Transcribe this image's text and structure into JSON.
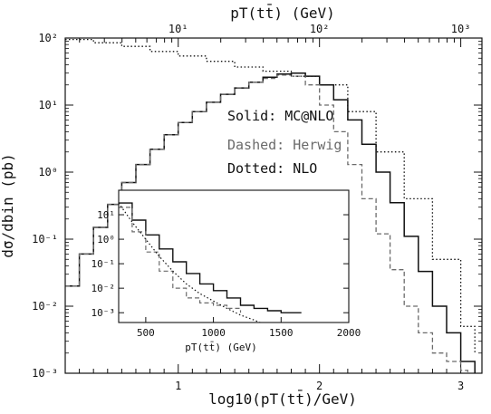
{
  "chart_data": {
    "type": "line",
    "main": {
      "xlabel": "log10(pT(tt̄)/GeV)",
      "top_xlabel": "pT(tt̄) (GeV)",
      "ylabel": "dσ/dbin (pb)",
      "xlim": [
        0.2,
        3.15
      ],
      "ylim_log10": [
        -3,
        2
      ],
      "log_y": true,
      "x_ticks": [
        "1",
        "2",
        "3"
      ],
      "x_tick_values": [
        1,
        2,
        3
      ],
      "top_ticks": [
        "10¹",
        "10²",
        "10³"
      ],
      "top_tick_values": [
        1,
        2,
        3
      ],
      "y_ticks": [
        "10⁻³",
        "10⁻²",
        "10⁻¹",
        "10⁰",
        "10¹",
        "10²"
      ],
      "y_tick_values": [
        -3,
        -2,
        -1,
        0,
        1,
        2
      ],
      "legend": [
        {
          "label": "Solid: MC@NLO",
          "color": "#111111"
        },
        {
          "label": "Dashed: Herwig",
          "color": "#6b6b6b"
        },
        {
          "label": "Dotted: NLO",
          "color": "#111111"
        }
      ],
      "series": [
        {
          "name": "MC@NLO",
          "style": "solid",
          "color": "#111111",
          "x": [
            0.2,
            0.3,
            0.4,
            0.5,
            0.6,
            0.7,
            0.8,
            0.9,
            1.0,
            1.1,
            1.2,
            1.3,
            1.4,
            1.5,
            1.6,
            1.7,
            1.8,
            1.9,
            2.0,
            2.1,
            2.2,
            2.3,
            2.4,
            2.5,
            2.6,
            2.7,
            2.8,
            2.9,
            3.0,
            3.1
          ],
          "y": [
            0.02,
            0.06,
            0.15,
            0.33,
            0.7,
            1.3,
            2.2,
            3.6,
            5.5,
            8.0,
            11.0,
            14.5,
            18.0,
            22.0,
            26.0,
            29.0,
            30.0,
            27.0,
            20.0,
            12.0,
            6.0,
            2.6,
            1.0,
            0.35,
            0.11,
            0.033,
            0.01,
            0.004,
            0.0015,
            0.001
          ]
        },
        {
          "name": "Herwig",
          "style": "dashed",
          "color": "#6b6b6b",
          "x": [
            0.2,
            0.3,
            0.4,
            0.5,
            0.6,
            0.7,
            0.8,
            0.9,
            1.0,
            1.1,
            1.2,
            1.3,
            1.4,
            1.5,
            1.6,
            1.7,
            1.8,
            1.9,
            2.0,
            2.1,
            2.2,
            2.3,
            2.4,
            2.5,
            2.6,
            2.7,
            2.8,
            2.9,
            3.0,
            3.05
          ],
          "y": [
            0.02,
            0.06,
            0.15,
            0.33,
            0.7,
            1.3,
            2.2,
            3.6,
            5.5,
            8.0,
            11.0,
            14.5,
            18.0,
            22.0,
            25.0,
            28.0,
            27.0,
            20.0,
            10.0,
            4.0,
            1.3,
            0.4,
            0.12,
            0.035,
            0.01,
            0.004,
            0.002,
            0.0015,
            0.0011,
            0.001
          ]
        },
        {
          "name": "NLO",
          "style": "dotted",
          "color": "#111111",
          "x": [
            0.2,
            0.4,
            0.6,
            0.8,
            1.0,
            1.2,
            1.4,
            1.6,
            1.8,
            2.0,
            2.2,
            2.4,
            2.6,
            2.8,
            3.0,
            3.1
          ],
          "y": [
            95.0,
            85.0,
            75.0,
            63.0,
            54.0,
            45.0,
            37.0,
            32.0,
            27.0,
            20.0,
            8.0,
            2.0,
            0.4,
            0.05,
            0.005,
            0.002
          ]
        }
      ]
    },
    "inset": {
      "xlabel": "pT(tt̄) (GeV)",
      "xlim": [
        300,
        2000
      ],
      "ylim_log10": [
        -3.4,
        2
      ],
      "log_y": true,
      "x_ticks": [
        "500",
        "1000",
        "1500",
        "2000"
      ],
      "x_tick_values": [
        500,
        1000,
        1500,
        2000
      ],
      "y_ticks": [
        "10¹",
        "10⁰",
        "10⁻¹",
        "10⁻²",
        "10⁻³"
      ],
      "y_tick_values": [
        1,
        0,
        -1,
        -2,
        -3
      ],
      "series": [
        {
          "name": "MC@NLO",
          "style": "solid",
          "color": "#111111",
          "x": [
            300,
            400,
            500,
            600,
            700,
            800,
            900,
            1000,
            1100,
            1200,
            1300,
            1400,
            1500,
            1650
          ],
          "y": [
            30.0,
            6.0,
            1.5,
            0.4,
            0.12,
            0.04,
            0.015,
            0.008,
            0.004,
            0.002,
            0.0015,
            0.0012,
            0.001,
            0.001
          ]
        },
        {
          "name": "Herwig",
          "style": "dashed",
          "color": "#6b6b6b",
          "x": [
            300,
            400,
            500,
            600,
            700,
            800,
            900,
            1000,
            1100,
            1200
          ],
          "y": [
            20.0,
            2.0,
            0.3,
            0.05,
            0.01,
            0.004,
            0.0025,
            0.002,
            0.0015,
            0.001
          ]
        },
        {
          "name": "NLO",
          "style": "dotted",
          "color": "#111111",
          "x": [
            300,
            400,
            500,
            600,
            700,
            800,
            900,
            1000,
            1100,
            1200,
            1300,
            1400
          ],
          "y": [
            30.0,
            5.0,
            1.0,
            0.2,
            0.05,
            0.015,
            0.006,
            0.003,
            0.0015,
            0.0008,
            0.0005,
            0.0003
          ]
        }
      ]
    }
  }
}
